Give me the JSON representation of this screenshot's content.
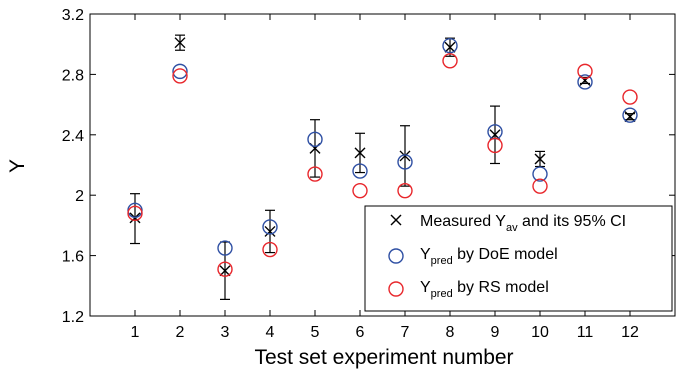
{
  "chart_data": {
    "type": "scatter",
    "title": "",
    "xlabel": "Test set experiment number",
    "ylabel": "Y",
    "xlim": [
      0,
      13
    ],
    "ylim": [
      1.2,
      3.2
    ],
    "x_ticks": [
      "1",
      "2",
      "3",
      "4",
      "5",
      "6",
      "7",
      "8",
      "9",
      "10",
      "11",
      "12"
    ],
    "y_ticks": [
      "1.2",
      "1.6",
      "2",
      "2.4",
      "2.8",
      "3.2"
    ],
    "grid": false,
    "legend_position": "bottom-right",
    "x": [
      1,
      2,
      3,
      4,
      5,
      6,
      7,
      8,
      9,
      10,
      11,
      12
    ],
    "series": [
      {
        "name": "Measured Y_av and its 95% CI",
        "legend_main": "Measured Y",
        "legend_sub": "av",
        "legend_rest": " and its 95% CI",
        "marker": "x",
        "color": "#000000",
        "values": [
          1.85,
          3.01,
          1.5,
          1.76,
          2.31,
          2.28,
          2.26,
          2.98,
          2.4,
          2.24,
          2.76,
          2.52
        ],
        "ci_low": [
          1.68,
          2.96,
          1.31,
          1.62,
          2.12,
          2.15,
          2.06,
          2.92,
          2.21,
          2.19,
          2.74,
          2.5
        ],
        "ci_high": [
          2.01,
          3.06,
          1.69,
          1.9,
          2.5,
          2.41,
          2.46,
          3.04,
          2.59,
          2.29,
          2.78,
          2.54
        ]
      },
      {
        "name": "Y_pred by DoE model",
        "legend_main": "Y",
        "legend_sub": "pred",
        "legend_rest": " by DoE model",
        "marker": "circle",
        "color": "#2e4fa3",
        "values": [
          1.9,
          2.82,
          1.65,
          1.79,
          2.37,
          2.16,
          2.22,
          2.99,
          2.42,
          2.14,
          2.75,
          2.53
        ]
      },
      {
        "name": "Y_pred by RS model",
        "legend_main": "Y",
        "legend_sub": "pred",
        "legend_rest": " by RS model",
        "marker": "circle",
        "color": "#e8262b",
        "values": [
          1.88,
          2.79,
          1.51,
          1.64,
          2.14,
          2.03,
          2.03,
          2.89,
          2.33,
          2.06,
          2.82,
          2.65
        ]
      }
    ]
  }
}
